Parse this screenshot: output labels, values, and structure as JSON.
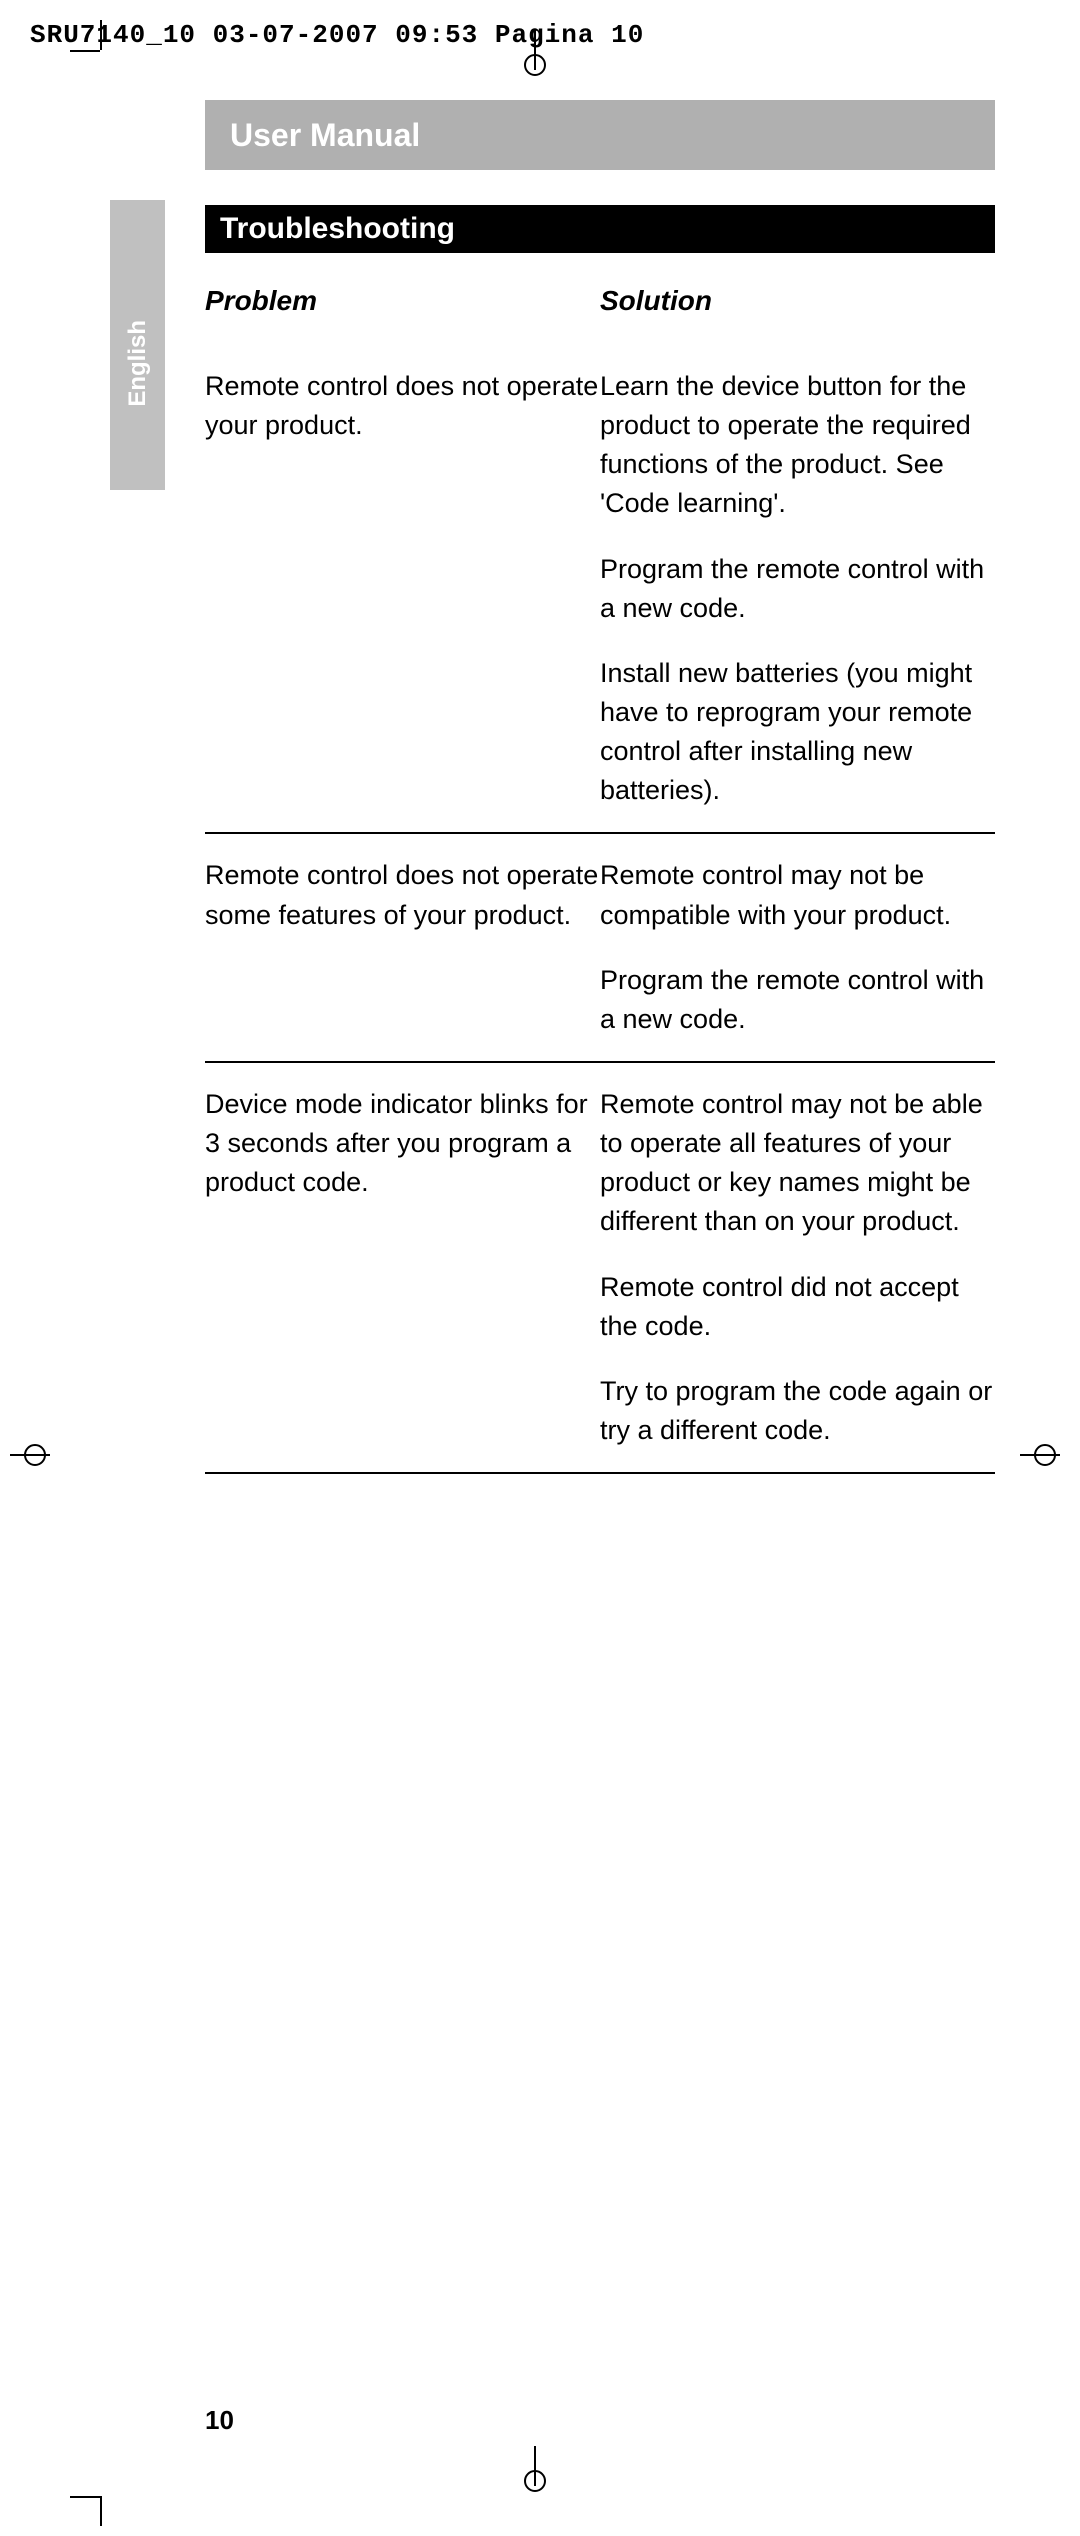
{
  "header_line": "SRU7140_10  03-07-2007  09:53  Pagina 10",
  "sidebar_label": "English",
  "banner": "User Manual",
  "section_title": "Troubleshooting",
  "headers": {
    "left": "Problem",
    "right": "Solution"
  },
  "rows": [
    {
      "problem": "Remote control does not operate your product.",
      "solutions": [
        "Learn the device button for the product to operate the required functions of the product. See 'Code learning'.",
        "Program the remote control with a new code.",
        "Install new batteries (you might have to reprogram your remote control after installing new batteries)."
      ]
    },
    {
      "problem": "Remote control does not operate some features of your product.",
      "solutions": [
        "Remote control may not be compatible with your product.",
        "Program the remote control with a new code."
      ]
    },
    {
      "problem": "Device mode indicator blinks for 3 seconds after you program a product code.",
      "solutions": [
        "Remote control may not be able to operate all features of your product or key names might be different than on your product.",
        "Remote control did not accept the code.",
        "Try to program the code again or try a different code."
      ]
    }
  ],
  "page_number": "10",
  "colors": {
    "sidebar_bg": "#c0c0c0",
    "banner_bg": "#b0b0b0",
    "section_bg": "#000000",
    "text": "#000000",
    "white": "#ffffff"
  },
  "fonts": {
    "mono_size_pt": 20,
    "heading_size_pt": 24,
    "body_size_pt": 20
  }
}
